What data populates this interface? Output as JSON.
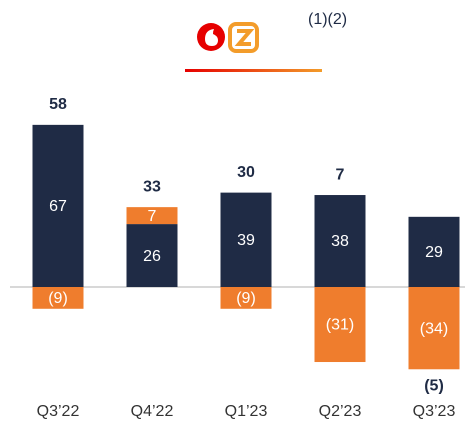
{
  "chart_data": {
    "type": "stacked_bar",
    "annotation": "(1)(2)",
    "categories": [
      "Q3’22",
      "Q4’22",
      "Q1’23",
      "Q2’23",
      "Q3’23"
    ],
    "series": [
      {
        "color": "#1f2b45",
        "values": [
          67,
          26,
          39,
          38,
          29
        ]
      },
      {
        "color": "#ef7d2d",
        "values": [
          -9,
          7,
          -9,
          -31,
          -34
        ],
        "value_labels": [
          "(9)",
          "7",
          "(9)",
          "(31)",
          "(34)"
        ]
      }
    ],
    "totals": [
      58,
      33,
      30,
      7,
      -5
    ],
    "total_labels": [
      "58",
      "33",
      "30",
      "7",
      "(5)"
    ]
  }
}
